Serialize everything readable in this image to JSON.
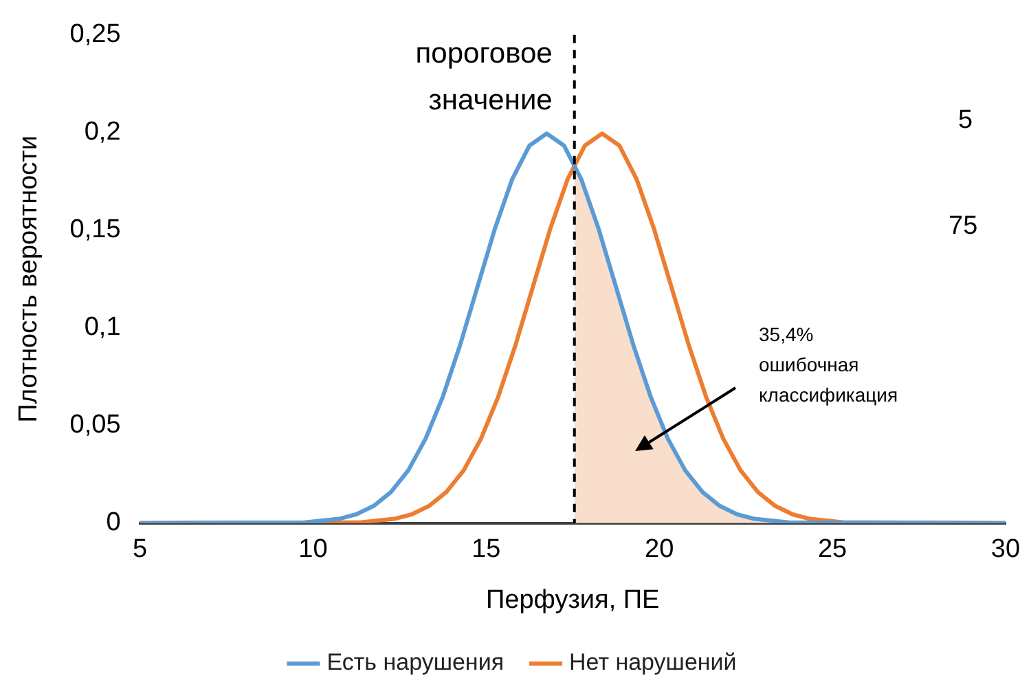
{
  "chart_data": {
    "type": "line",
    "xlabel": "Перфузия, ПЕ",
    "ylabel": "Плотность вероятности",
    "xlim": [
      5,
      30
    ],
    "xticks": [
      5,
      10,
      15,
      20,
      25,
      30
    ],
    "ylim": [
      0,
      0.25
    ],
    "yticks": [
      0,
      {
        "value": 0.05,
        "label": "0,05"
      },
      {
        "value": 0.1,
        "label": "0,1"
      },
      {
        "value": 0.15,
        "label": "0,15"
      },
      {
        "value": 0.2,
        "label": "0,2"
      },
      {
        "value": 0.25,
        "label": "0,25"
      }
    ],
    "grid": false,
    "legend": "bottom",
    "marker": "none",
    "line_style": "solid",
    "series": [
      {
        "type": "area",
        "color": "#f8decb",
        "x": [
          17.55,
          17.75,
          18.25,
          18.75,
          19.25,
          19.75,
          20.25,
          20.75,
          21.25,
          21.75,
          22.25,
          22.75,
          23.75,
          25
        ],
        "values": [
          0.1841,
          0.176,
          0.1506,
          0.121,
          0.0913,
          0.0648,
          0.0432,
          0.027,
          0.0159,
          0.0088,
          0.0045,
          0.0022,
          0.0004,
          0
        ]
      },
      {
        "name": "Есть нарушения",
        "color": "#5b9bd5",
        "x": [
          5,
          9.75,
          10.75,
          11.25,
          11.75,
          12.25,
          12.75,
          13.25,
          13.75,
          14.25,
          14.75,
          15.25,
          15.75,
          16.25,
          16.75,
          17.25,
          17.75,
          18.25,
          18.75,
          19.25,
          19.75,
          20.25,
          20.75,
          21.25,
          21.75,
          22.25,
          22.75,
          23.75,
          30
        ],
        "values": [
          0,
          0.0004,
          0.0022,
          0.0045,
          0.0088,
          0.0159,
          0.027,
          0.0432,
          0.0648,
          0.0913,
          0.121,
          0.1506,
          0.176,
          0.1933,
          0.1995,
          0.1933,
          0.176,
          0.1506,
          0.121,
          0.0913,
          0.0648,
          0.0432,
          0.027,
          0.0159,
          0.0088,
          0.0045,
          0.0022,
          0.0004,
          0
        ]
      },
      {
        "name": "Нет нарушений",
        "color": "#ed7d31",
        "x": [
          5,
          11.35,
          12.35,
          12.85,
          13.35,
          13.85,
          14.35,
          14.85,
          15.35,
          15.85,
          16.35,
          16.85,
          17.35,
          17.85,
          18.35,
          18.85,
          19.35,
          19.85,
          20.35,
          20.85,
          21.35,
          21.85,
          22.35,
          22.85,
          23.35,
          23.85,
          24.35,
          25.35,
          30
        ],
        "values": [
          0,
          0.0004,
          0.0022,
          0.0045,
          0.0088,
          0.0159,
          0.027,
          0.0432,
          0.0648,
          0.0913,
          0.121,
          0.1506,
          0.176,
          0.1933,
          0.1995,
          0.1933,
          0.176,
          0.1506,
          0.121,
          0.0913,
          0.0648,
          0.0432,
          0.027,
          0.0159,
          0.0088,
          0.0045,
          0.0022,
          0.0004,
          0
        ]
      }
    ],
    "ref_lines": [
      {
        "axis": "x",
        "value": 17.55,
        "label": "пороговое значение",
        "color": "#000000",
        "line_style": "dashed"
      }
    ],
    "annotations": [
      "35,4% ошибочная классификация",
      "5",
      "75"
    ]
  }
}
